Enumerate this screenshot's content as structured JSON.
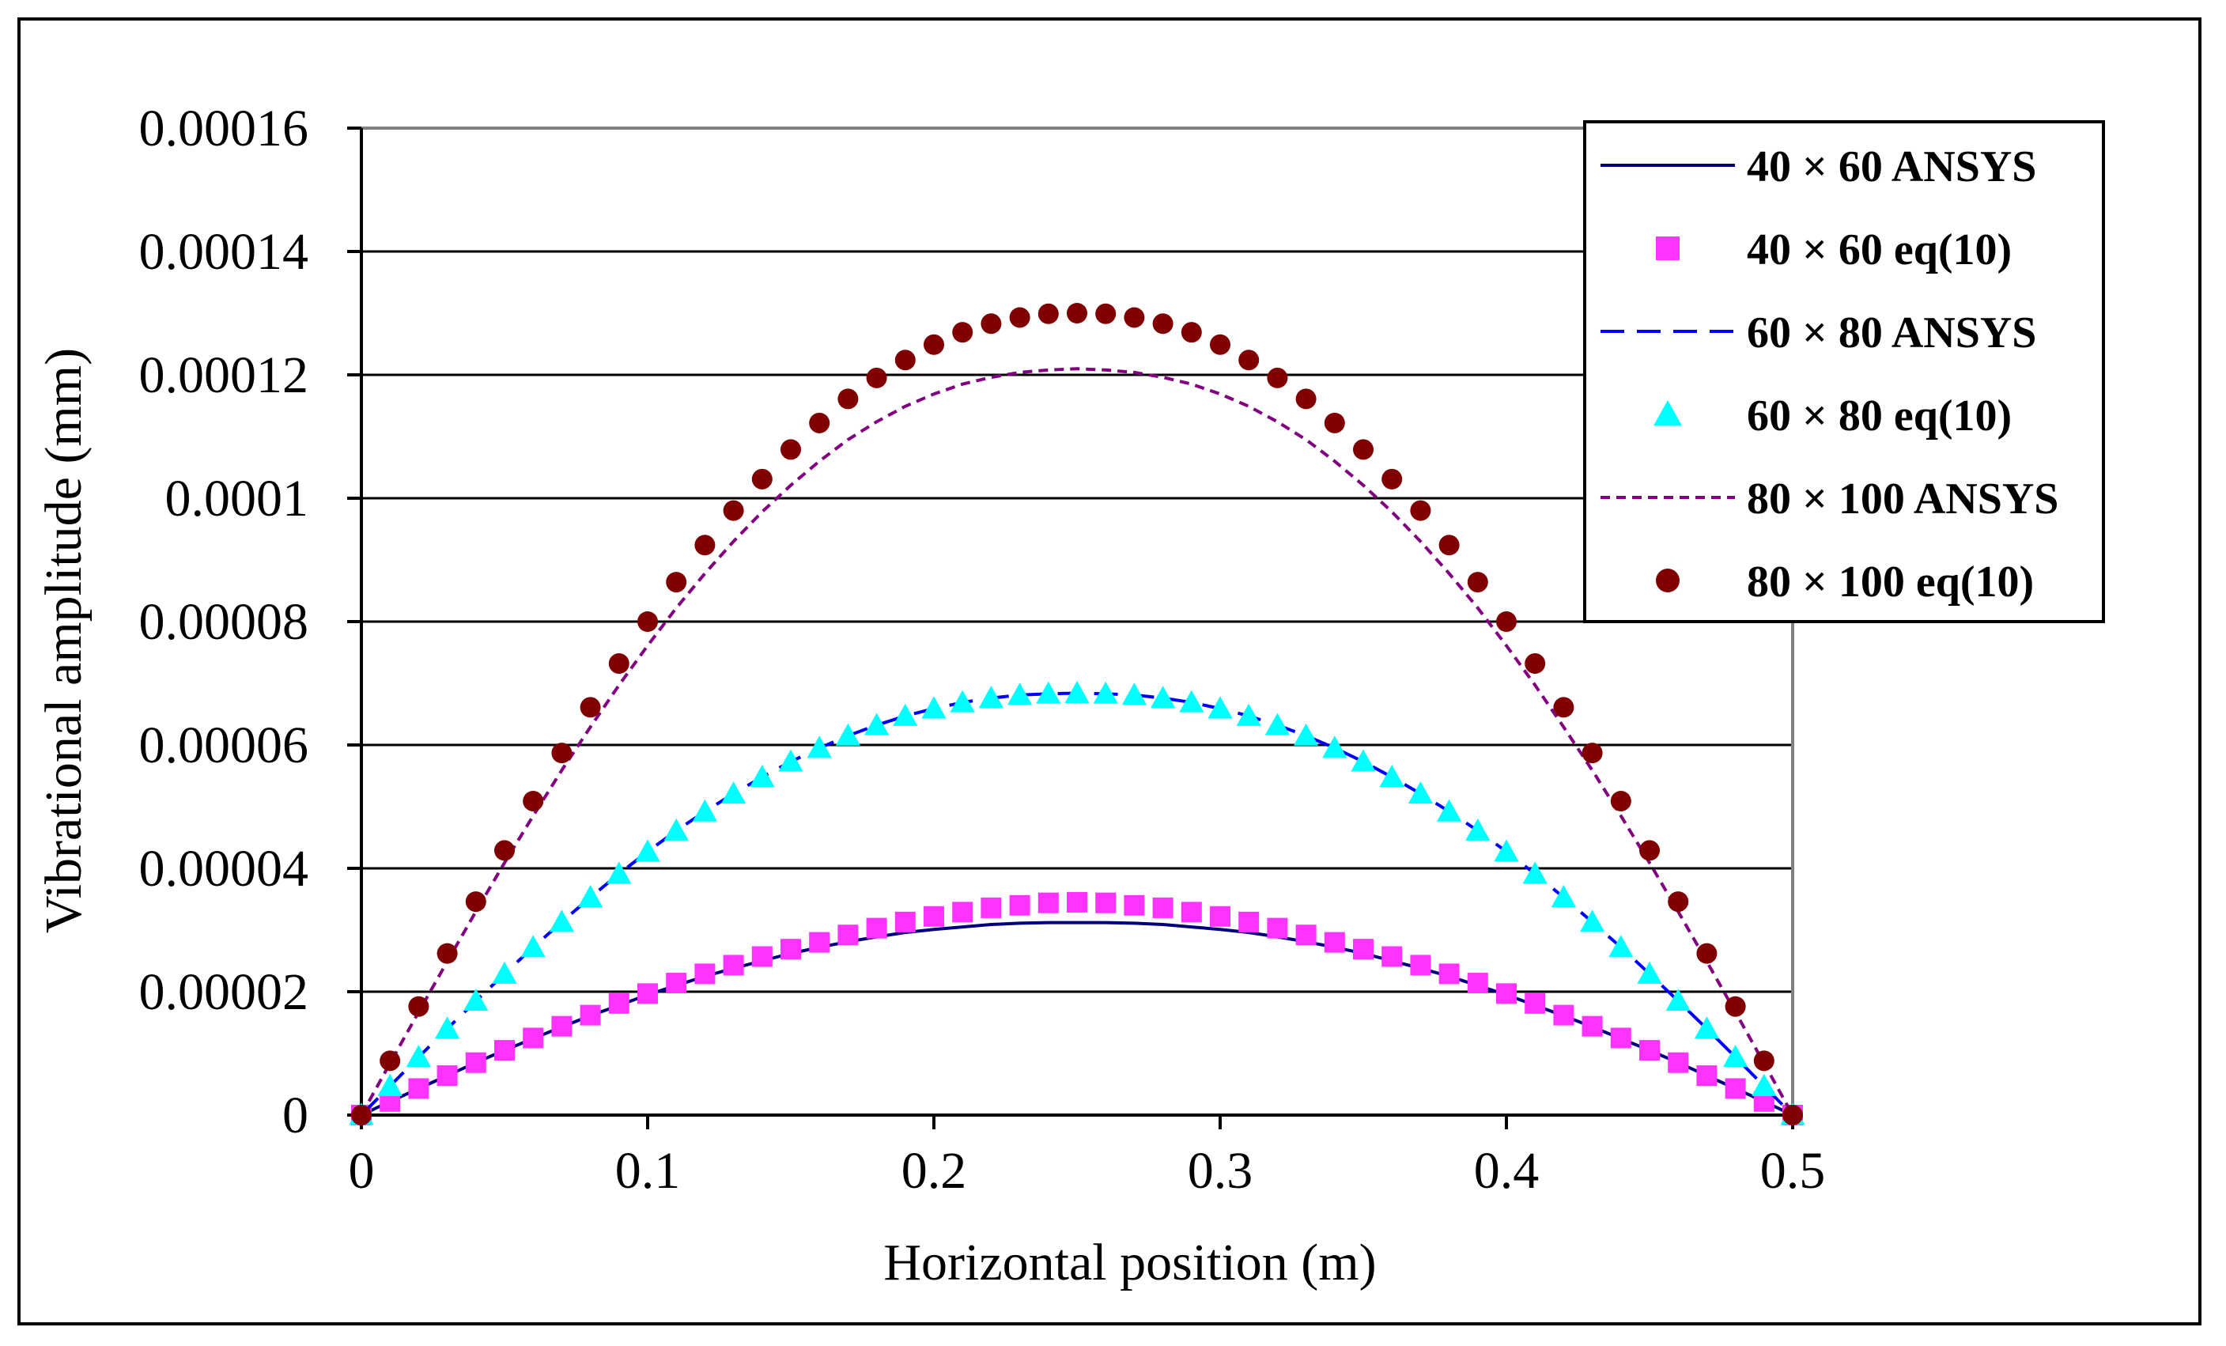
{
  "chart_data": {
    "type": "line",
    "title": "",
    "xlabel": "Horizontal position (m)",
    "ylabel": "Vibrational amplitude (mm)",
    "xlim": [
      0,
      0.5
    ],
    "ylim": [
      0,
      0.00016
    ],
    "x_ticks": [
      "0",
      "0.1",
      "0.2",
      "0.3",
      "0.4",
      "0.5"
    ],
    "y_ticks": [
      "0",
      "0.00002",
      "0.00004",
      "0.00006",
      "0.00008",
      "0.0001",
      "0.00012",
      "0.00014",
      "0.00016"
    ],
    "grid": "horizontal",
    "legend_position": "top-right",
    "x": [
      0,
      0.01,
      0.02,
      0.03,
      0.04,
      0.05,
      0.06,
      0.07,
      0.08,
      0.09,
      0.1,
      0.11,
      0.12,
      0.13,
      0.14,
      0.15,
      0.16,
      0.17,
      0.18,
      0.19,
      0.2,
      0.21,
      0.22,
      0.23,
      0.24,
      0.25,
      0.26,
      0.27,
      0.28,
      0.29,
      0.3,
      0.31,
      0.32,
      0.33,
      0.34,
      0.35,
      0.36,
      0.37,
      0.38,
      0.39,
      0.4,
      0.41,
      0.42,
      0.43,
      0.44,
      0.45,
      0.46,
      0.47,
      0.48,
      0.49,
      0.5
    ],
    "series": [
      {
        "name": "40 × 60 ANSYS",
        "kind": "line",
        "style": "solid",
        "color": "#00007f",
        "values": [
          0,
          2.2e-06,
          4.3e-06,
          6.4e-06,
          8.5e-06,
          1.05e-05,
          1.24e-05,
          1.43e-05,
          1.61e-05,
          1.78e-05,
          1.95e-05,
          2.1e-05,
          2.25e-05,
          2.38e-05,
          2.5e-05,
          2.62e-05,
          2.72e-05,
          2.81e-05,
          2.89e-05,
          2.96e-05,
          3.01e-05,
          3.05e-05,
          3.09e-05,
          3.11e-05,
          3.12e-05,
          3.12e-05,
          3.12e-05,
          3.11e-05,
          3.09e-05,
          3.05e-05,
          3.01e-05,
          2.96e-05,
          2.89e-05,
          2.81e-05,
          2.72e-05,
          2.62e-05,
          2.5e-05,
          2.38e-05,
          2.25e-05,
          2.1e-05,
          1.95e-05,
          1.78e-05,
          1.61e-05,
          1.43e-05,
          1.24e-05,
          1.05e-05,
          8.5e-06,
          6.4e-06,
          4.3e-06,
          2.2e-06,
          0
        ]
      },
      {
        "name": "40 × 60 eq(10)",
        "kind": "marker",
        "marker": "square",
        "color": "#ff33ff",
        "values": [
          0,
          2.2e-06,
          4.3e-06,
          6.4e-06,
          8.5e-06,
          1.05e-05,
          1.25e-05,
          1.44e-05,
          1.62e-05,
          1.81e-05,
          1.97e-05,
          2.14e-05,
          2.29e-05,
          2.43e-05,
          2.57e-05,
          2.69e-05,
          2.8e-05,
          2.92e-05,
          3.03e-05,
          3.13e-05,
          3.22e-05,
          3.29e-05,
          3.36e-05,
          3.4e-05,
          3.44e-05,
          3.45e-05,
          3.44e-05,
          3.4e-05,
          3.36e-05,
          3.29e-05,
          3.22e-05,
          3.13e-05,
          3.03e-05,
          2.92e-05,
          2.8e-05,
          2.69e-05,
          2.57e-05,
          2.43e-05,
          2.29e-05,
          2.14e-05,
          1.97e-05,
          1.81e-05,
          1.62e-05,
          1.44e-05,
          1.25e-05,
          1.05e-05,
          8.5e-06,
          6.4e-06,
          4.3e-06,
          2.2e-06,
          0
        ]
      },
      {
        "name": "60 × 80 ANSYS",
        "kind": "line",
        "style": "dashed",
        "color": "#0000ff",
        "values": [
          0,
          4.7e-06,
          9.4e-06,
          1.4e-05,
          1.85e-05,
          2.29e-05,
          2.72e-05,
          3.13e-05,
          3.53e-05,
          3.91e-05,
          4.27e-05,
          4.61e-05,
          4.92e-05,
          5.21e-05,
          5.48e-05,
          5.73e-05,
          5.95e-05,
          6.15e-05,
          6.32e-05,
          6.47e-05,
          6.59e-05,
          6.69e-05,
          6.76e-05,
          6.81e-05,
          6.83e-05,
          6.84e-05,
          6.83e-05,
          6.81e-05,
          6.76e-05,
          6.69e-05,
          6.59e-05,
          6.47e-05,
          6.32e-05,
          6.15e-05,
          5.95e-05,
          5.73e-05,
          5.48e-05,
          5.21e-05,
          4.92e-05,
          4.61e-05,
          4.27e-05,
          3.91e-05,
          3.53e-05,
          3.13e-05,
          2.72e-05,
          2.29e-05,
          1.85e-05,
          1.4e-05,
          9.4e-06,
          4.7e-06,
          0
        ]
      },
      {
        "name": "60 × 80 eq(10)",
        "kind": "marker",
        "marker": "triangle",
        "color": "#00ffff",
        "values": [
          0,
          4.7e-06,
          9.4e-06,
          1.4e-05,
          1.85e-05,
          2.29e-05,
          2.72e-05,
          3.13e-05,
          3.53e-05,
          3.91e-05,
          4.27e-05,
          4.61e-05,
          4.92e-05,
          5.21e-05,
          5.48e-05,
          5.73e-05,
          5.95e-05,
          6.15e-05,
          6.32e-05,
          6.47e-05,
          6.59e-05,
          6.69e-05,
          6.76e-05,
          6.81e-05,
          6.83e-05,
          6.84e-05,
          6.83e-05,
          6.81e-05,
          6.76e-05,
          6.69e-05,
          6.59e-05,
          6.47e-05,
          6.32e-05,
          6.15e-05,
          5.95e-05,
          5.73e-05,
          5.48e-05,
          5.21e-05,
          4.92e-05,
          4.61e-05,
          4.27e-05,
          3.91e-05,
          3.53e-05,
          3.13e-05,
          2.72e-05,
          2.29e-05,
          1.85e-05,
          1.4e-05,
          9.4e-06,
          4.7e-06,
          0
        ]
      },
      {
        "name": "80 × 100 ANSYS",
        "kind": "line",
        "style": "dotted",
        "color": "#800080",
        "values": [
          0,
          8.4e-06,
          1.67e-05,
          2.49e-05,
          3.3e-05,
          4.09e-05,
          4.85e-05,
          5.59e-05,
          6.29e-05,
          6.97e-05,
          7.61e-05,
          8.22e-05,
          8.78e-05,
          9.3e-05,
          9.78e-05,
          0.0001021,
          0.000106,
          0.0001095,
          0.0001124,
          0.0001149,
          0.0001169,
          0.0001185,
          0.0001196,
          0.0001204,
          0.0001208,
          0.000121,
          0.0001208,
          0.0001204,
          0.0001196,
          0.0001185,
          0.0001169,
          0.0001149,
          0.0001124,
          0.0001095,
          0.000106,
          0.0001021,
          9.78e-05,
          9.3e-05,
          8.78e-05,
          8.22e-05,
          7.61e-05,
          6.97e-05,
          6.29e-05,
          5.59e-05,
          4.85e-05,
          4.09e-05,
          3.3e-05,
          2.49e-05,
          1.67e-05,
          8.4e-06,
          0
        ]
      },
      {
        "name": "80 × 100 eq(10)",
        "kind": "marker",
        "marker": "circle",
        "color": "#800000",
        "values": [
          0,
          8.8e-06,
          1.76e-05,
          2.62e-05,
          3.46e-05,
          4.29e-05,
          5.09e-05,
          5.87e-05,
          6.61e-05,
          7.32e-05,
          8e-05,
          8.64e-05,
          9.24e-05,
          9.8e-05,
          0.0001031,
          0.0001079,
          0.0001122,
          0.0001161,
          0.0001195,
          0.0001224,
          0.0001249,
          0.0001269,
          0.0001283,
          0.0001293,
          0.0001299,
          0.00013,
          0.0001299,
          0.0001293,
          0.0001283,
          0.0001269,
          0.0001249,
          0.0001224,
          0.0001195,
          0.0001161,
          0.0001122,
          0.0001079,
          0.0001031,
          9.8e-05,
          9.24e-05,
          8.64e-05,
          8e-05,
          7.32e-05,
          6.61e-05,
          5.87e-05,
          5.09e-05,
          4.29e-05,
          3.46e-05,
          2.62e-05,
          1.76e-05,
          8.8e-06,
          0
        ]
      }
    ]
  }
}
